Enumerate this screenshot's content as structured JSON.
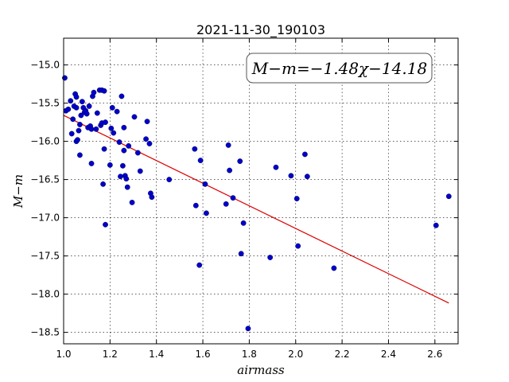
{
  "chart_data": {
    "type": "scatter",
    "title": "2021-11-30_190103",
    "xlabel": "airmass",
    "ylabel": "M−m",
    "xlim": [
      1.0,
      2.7
    ],
    "ylim": [
      -18.65,
      -14.65
    ],
    "y_inverted": false,
    "grid": true,
    "xticks": [
      1.0,
      1.2,
      1.4,
      1.6,
      1.8,
      2.0,
      2.2,
      2.4,
      2.6
    ],
    "xtick_labels": [
      "1.0",
      "1.2",
      "1.4",
      "1.6",
      "1.8",
      "2.0",
      "2.2",
      "2.4",
      "2.6"
    ],
    "yticks": [
      -15.0,
      -15.5,
      -16.0,
      -16.5,
      -17.0,
      -17.5,
      -18.0,
      -18.5
    ],
    "ytick_labels": [
      "−15.0",
      "−15.5",
      "−16.0",
      "−16.5",
      "−17.0",
      "−17.5",
      "−18.0",
      "−18.5"
    ],
    "marker_color": "#0000cc",
    "fit_color": "#dd0000",
    "annotation": "M−m=−1.48χ−14.18",
    "fit_line": {
      "slope": -1.48,
      "intercept": -14.18,
      "x_range": [
        1.0,
        2.66
      ]
    },
    "points": [
      {
        "x": 1.005,
        "y": -15.17
      },
      {
        "x": 1.01,
        "y": -15.6
      },
      {
        "x": 1.02,
        "y": -15.58
      },
      {
        "x": 1.03,
        "y": -15.47
      },
      {
        "x": 1.035,
        "y": -15.9
      },
      {
        "x": 1.04,
        "y": -15.71
      },
      {
        "x": 1.045,
        "y": -15.54
      },
      {
        "x": 1.05,
        "y": -15.38
      },
      {
        "x": 1.055,
        "y": -15.42
      },
      {
        "x": 1.055,
        "y": -15.56
      },
      {
        "x": 1.055,
        "y": -16.0
      },
      {
        "x": 1.06,
        "y": -15.98
      },
      {
        "x": 1.065,
        "y": -15.86
      },
      {
        "x": 1.07,
        "y": -15.78
      },
      {
        "x": 1.07,
        "y": -16.18
      },
      {
        "x": 1.075,
        "y": -15.66
      },
      {
        "x": 1.08,
        "y": -15.48
      },
      {
        "x": 1.085,
        "y": -15.56
      },
      {
        "x": 1.09,
        "y": -15.62
      },
      {
        "x": 1.095,
        "y": -15.6
      },
      {
        "x": 1.1,
        "y": -15.64
      },
      {
        "x": 1.105,
        "y": -15.82
      },
      {
        "x": 1.11,
        "y": -15.54
      },
      {
        "x": 1.115,
        "y": -15.8
      },
      {
        "x": 1.12,
        "y": -15.84
      },
      {
        "x": 1.12,
        "y": -16.29
      },
      {
        "x": 1.125,
        "y": -15.41
      },
      {
        "x": 1.13,
        "y": -15.36
      },
      {
        "x": 1.14,
        "y": -15.84
      },
      {
        "x": 1.145,
        "y": -15.63
      },
      {
        "x": 1.155,
        "y": -15.33
      },
      {
        "x": 1.16,
        "y": -15.79
      },
      {
        "x": 1.165,
        "y": -15.33
      },
      {
        "x": 1.165,
        "y": -15.76
      },
      {
        "x": 1.17,
        "y": -16.56
      },
      {
        "x": 1.175,
        "y": -15.34
      },
      {
        "x": 1.175,
        "y": -16.1
      },
      {
        "x": 1.18,
        "y": -15.75
      },
      {
        "x": 1.18,
        "y": -17.09
      },
      {
        "x": 1.2,
        "y": -16.31
      },
      {
        "x": 1.205,
        "y": -15.83
      },
      {
        "x": 1.21,
        "y": -15.56
      },
      {
        "x": 1.215,
        "y": -15.89
      },
      {
        "x": 1.23,
        "y": -15.61
      },
      {
        "x": 1.24,
        "y": -16.01
      },
      {
        "x": 1.245,
        "y": -16.46
      },
      {
        "x": 1.25,
        "y": -15.41
      },
      {
        "x": 1.255,
        "y": -16.32
      },
      {
        "x": 1.26,
        "y": -15.82
      },
      {
        "x": 1.26,
        "y": -16.12
      },
      {
        "x": 1.265,
        "y": -16.45
      },
      {
        "x": 1.27,
        "y": -16.49
      },
      {
        "x": 1.275,
        "y": -16.6
      },
      {
        "x": 1.28,
        "y": -16.06
      },
      {
        "x": 1.295,
        "y": -16.8
      },
      {
        "x": 1.305,
        "y": -15.68
      },
      {
        "x": 1.32,
        "y": -16.15
      },
      {
        "x": 1.33,
        "y": -16.39
      },
      {
        "x": 1.355,
        "y": -15.97
      },
      {
        "x": 1.36,
        "y": -15.74
      },
      {
        "x": 1.37,
        "y": -16.03
      },
      {
        "x": 1.375,
        "y": -16.68
      },
      {
        "x": 1.38,
        "y": -16.73
      },
      {
        "x": 1.455,
        "y": -16.5
      },
      {
        "x": 1.565,
        "y": -16.1
      },
      {
        "x": 1.57,
        "y": -16.84
      },
      {
        "x": 1.585,
        "y": -17.62
      },
      {
        "x": 1.59,
        "y": -16.25
      },
      {
        "x": 1.61,
        "y": -16.56
      },
      {
        "x": 1.615,
        "y": -16.94
      },
      {
        "x": 1.7,
        "y": -16.82
      },
      {
        "x": 1.71,
        "y": -16.05
      },
      {
        "x": 1.715,
        "y": -16.38
      },
      {
        "x": 1.73,
        "y": -16.74
      },
      {
        "x": 1.76,
        "y": -16.26
      },
      {
        "x": 1.765,
        "y": -17.47
      },
      {
        "x": 1.775,
        "y": -17.07
      },
      {
        "x": 1.795,
        "y": -18.45
      },
      {
        "x": 1.89,
        "y": -17.52
      },
      {
        "x": 1.915,
        "y": -16.34
      },
      {
        "x": 1.98,
        "y": -16.45
      },
      {
        "x": 2.005,
        "y": -16.75
      },
      {
        "x": 2.01,
        "y": -17.37
      },
      {
        "x": 2.04,
        "y": -16.17
      },
      {
        "x": 2.05,
        "y": -16.46
      },
      {
        "x": 2.165,
        "y": -17.66
      },
      {
        "x": 2.605,
        "y": -17.1
      },
      {
        "x": 2.66,
        "y": -16.72
      }
    ]
  }
}
